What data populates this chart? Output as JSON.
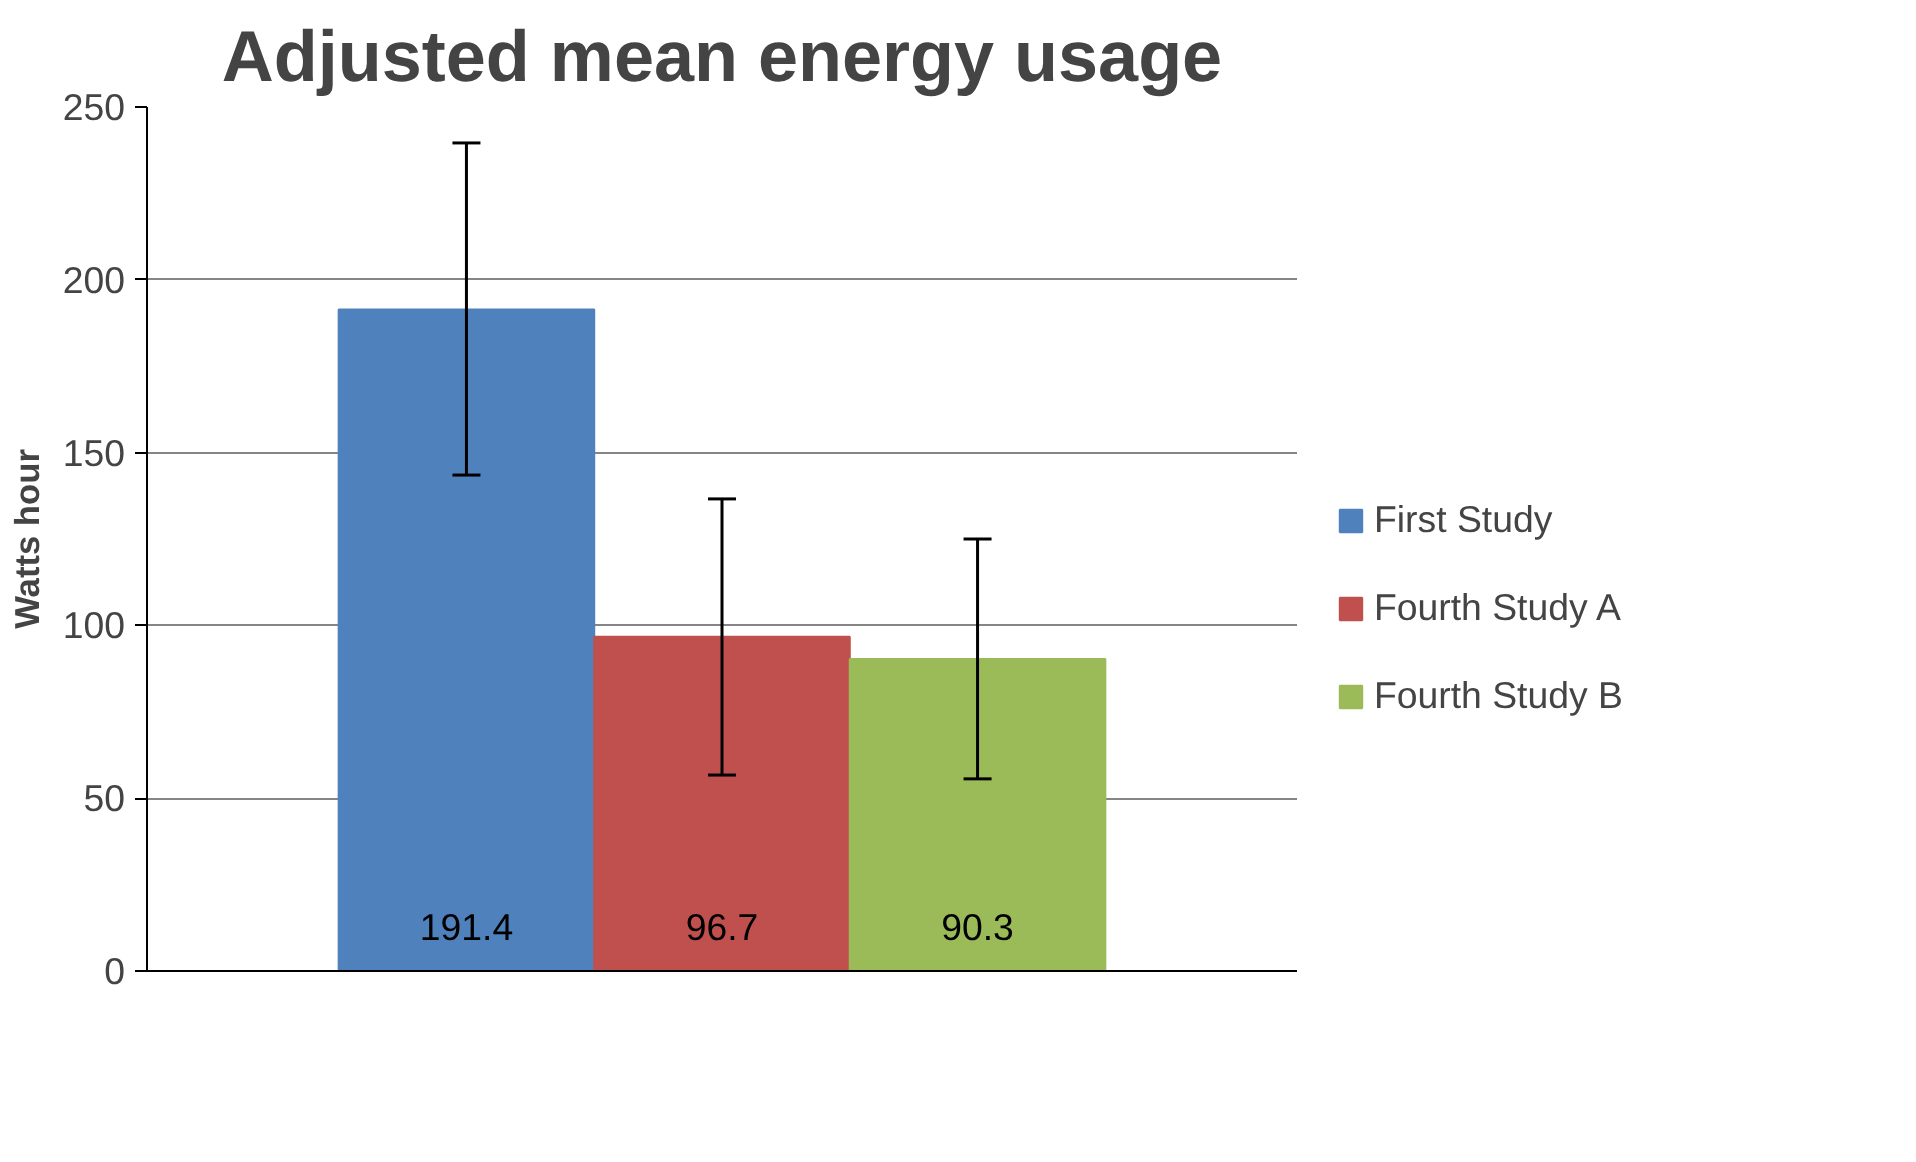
{
  "chart_data": {
    "type": "bar",
    "title": "Adjusted mean energy usage",
    "ylabel": "Watts hour",
    "categories": [
      null
    ],
    "series": [
      {
        "name": "First Study",
        "color": "#4f81bd",
        "values": [
          191.4
        ],
        "errors": [
          [
            143.5,
            239.6
          ]
        ]
      },
      {
        "name": "Fourth Study A",
        "color": "#c0504d",
        "values": [
          96.7
        ],
        "errors": [
          [
            56.7,
            136.6
          ]
        ]
      },
      {
        "name": "Fourth Study B",
        "color": "#9bbb59",
        "values": [
          90.3
        ],
        "errors": [
          [
            55.6,
            125
          ]
        ]
      }
    ],
    "ylim": [
      0,
      250
    ],
    "yticks": [
      0,
      50,
      100,
      150,
      200,
      250
    ],
    "grid": "y",
    "legend": "right",
    "data_labels": true
  }
}
